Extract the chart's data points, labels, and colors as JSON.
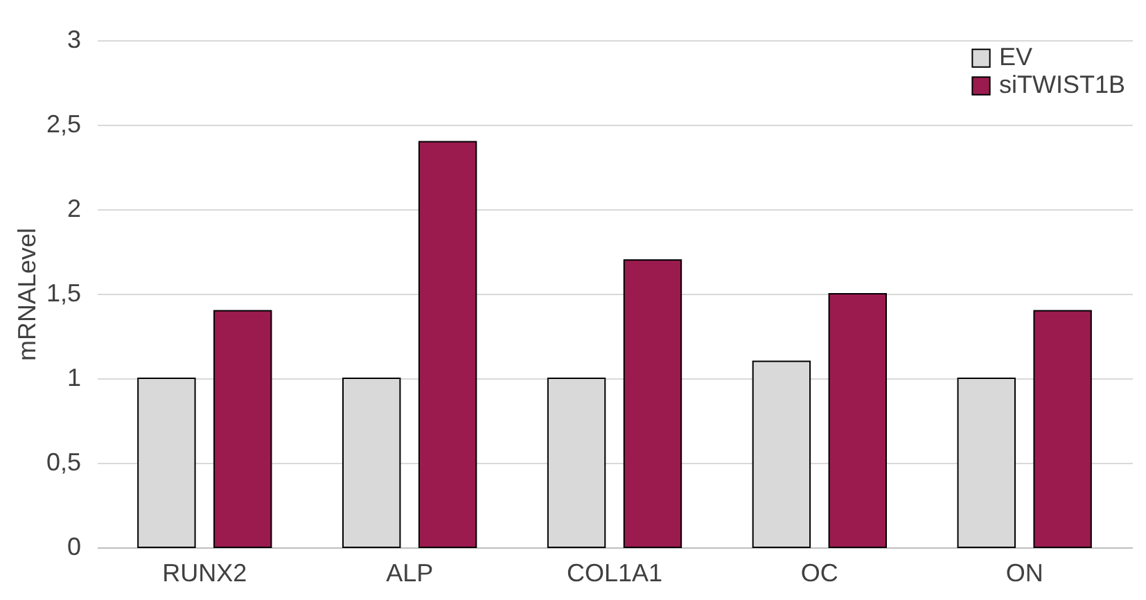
{
  "chart_data": {
    "type": "bar",
    "ylabel": "mRNALevel",
    "categories": [
      "RUNX2",
      "ALP",
      "COL1A1",
      "OC",
      "ON"
    ],
    "series": [
      {
        "name": "EV",
        "color": "#d9d9d9",
        "values": [
          1,
          1,
          1,
          1.1,
          1
        ]
      },
      {
        "name": "siTWIST1B",
        "color": "#9b1b4f",
        "values": [
          1.4,
          2.4,
          1.7,
          1.5,
          1.4
        ]
      }
    ],
    "ylim": [
      0,
      3
    ],
    "yticks": [
      0,
      {
        "value": 0.5,
        "label": "0,5"
      },
      1,
      {
        "value": 1.5,
        "label": "1,5"
      },
      2,
      {
        "value": 2.5,
        "label": "2,5"
      },
      3
    ],
    "grid": "y",
    "legend": "top right"
  }
}
